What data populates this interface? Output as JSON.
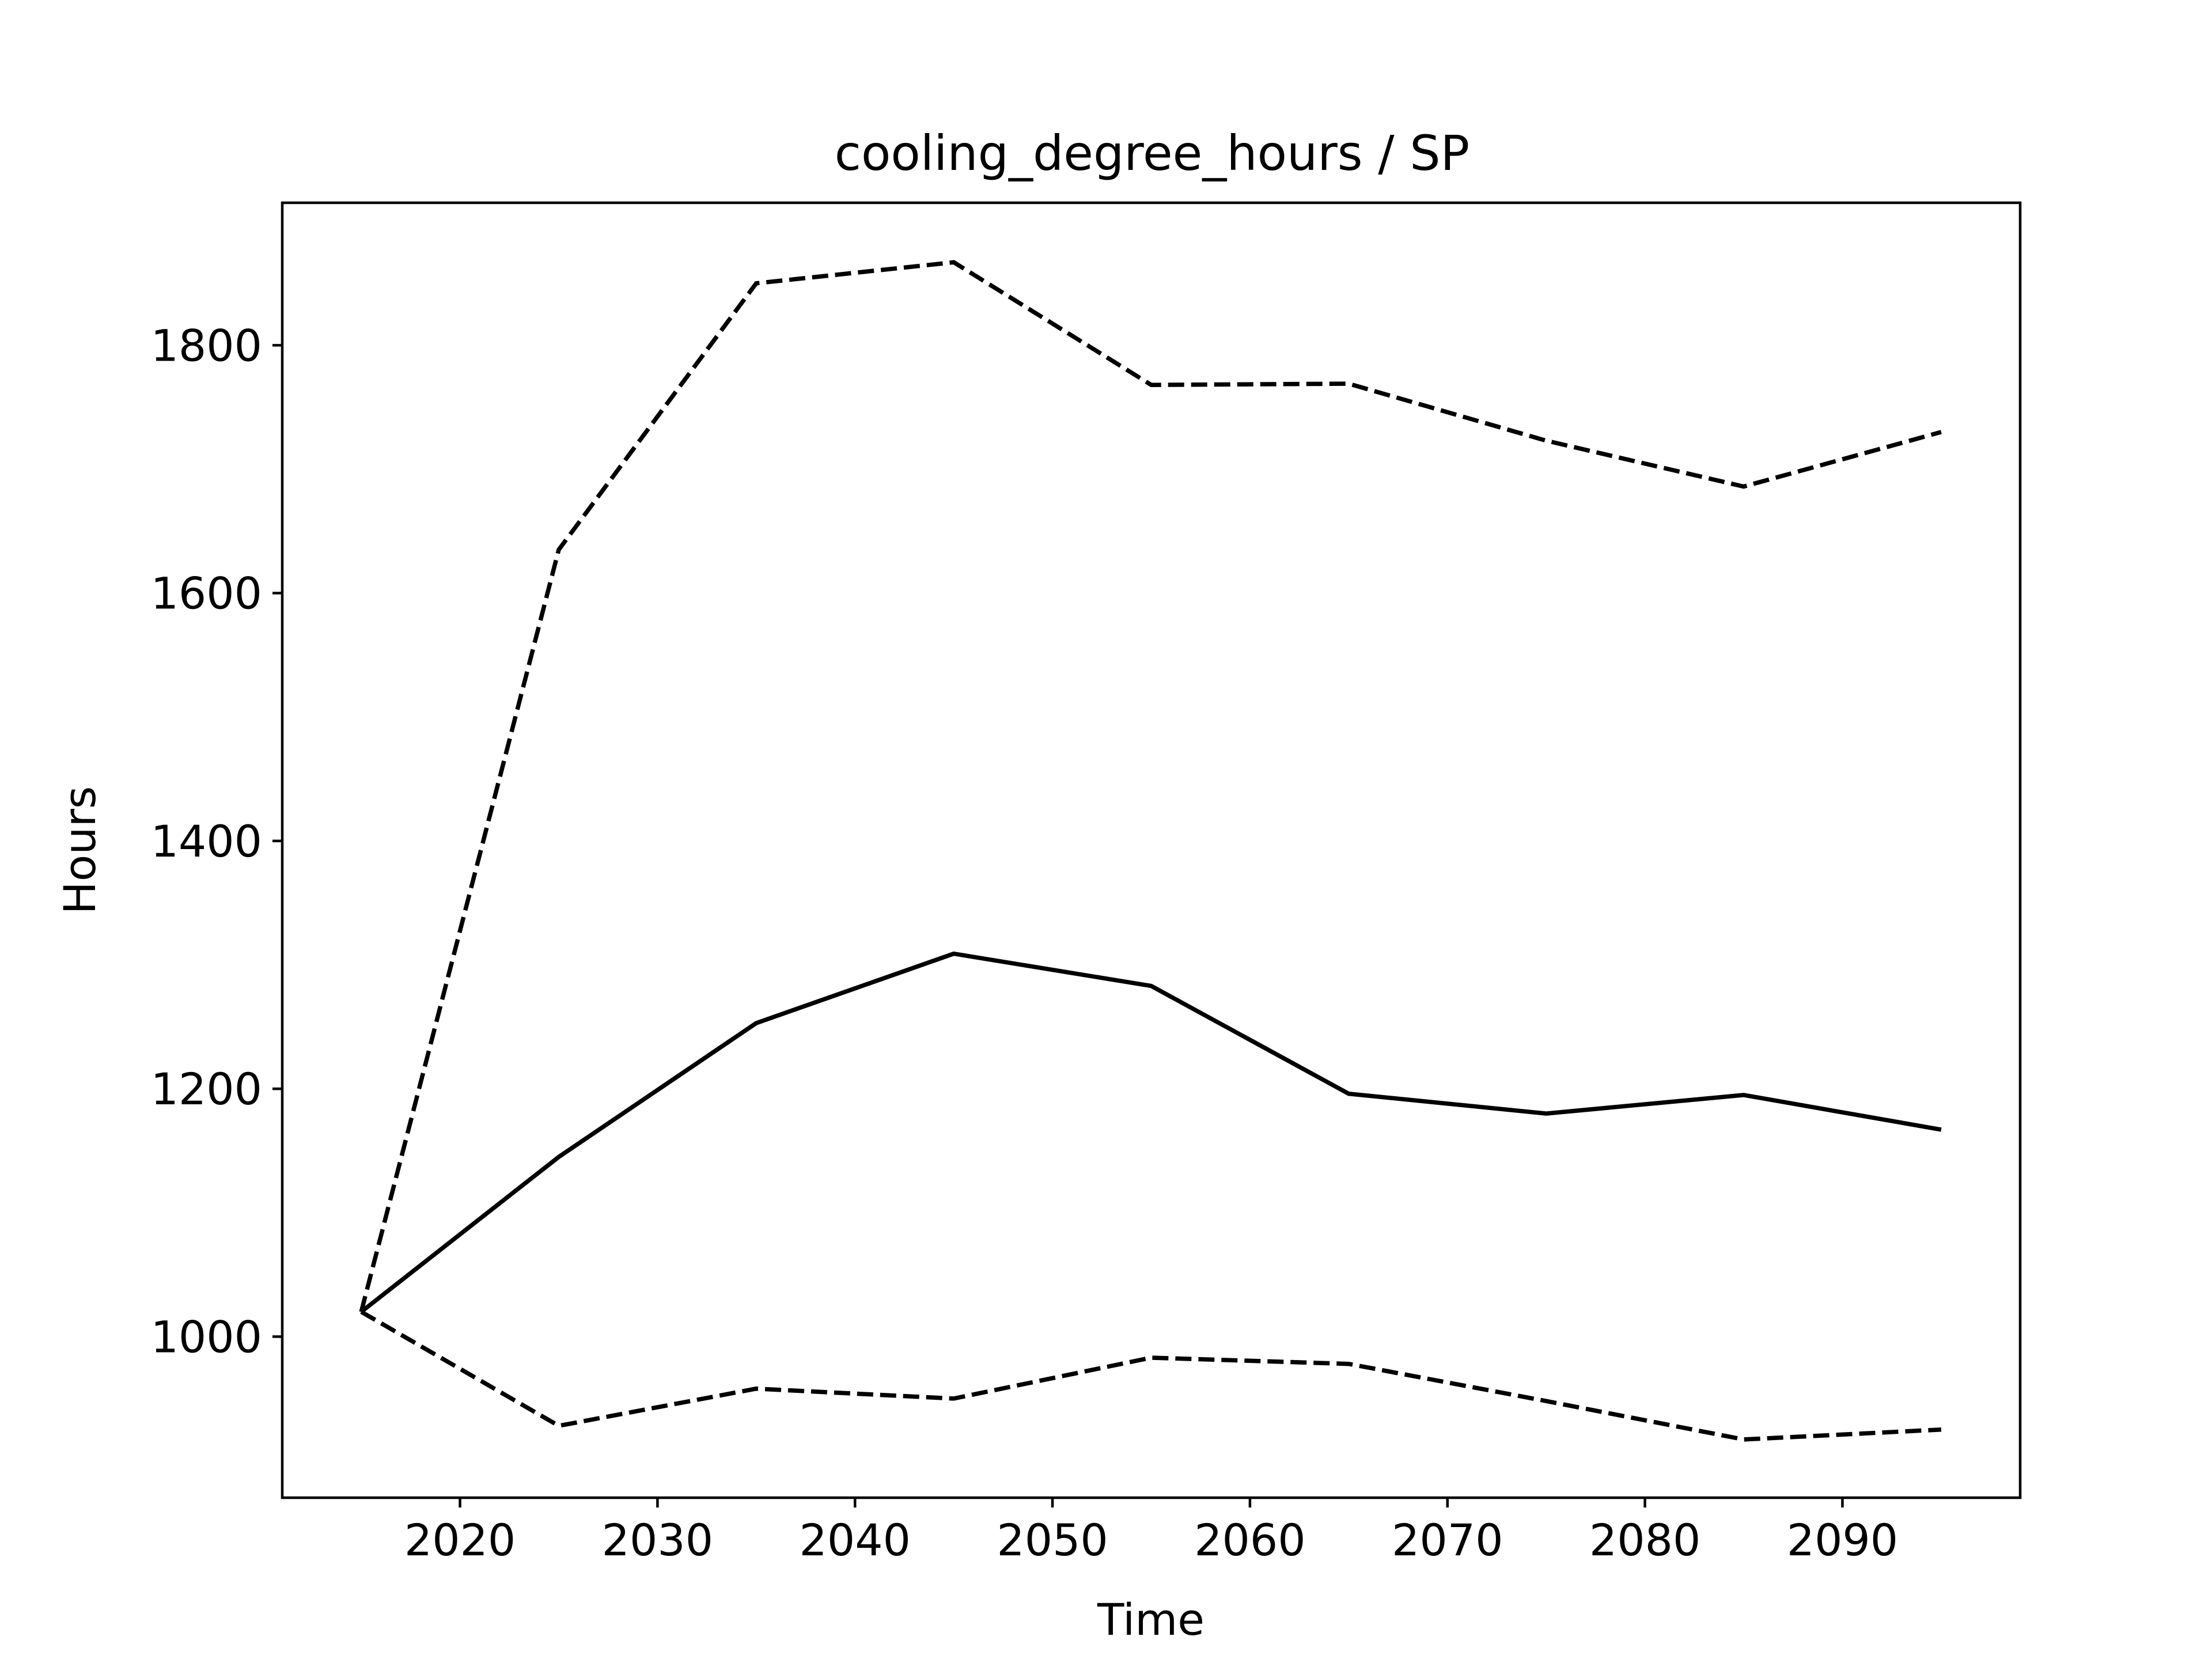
{
  "chart_data": {
    "type": "line",
    "title": "cooling_degree_hours / SP",
    "xlabel": "Time",
    "ylabel": "Hours",
    "x": [
      2015,
      2025,
      2035,
      2045,
      2055,
      2065,
      2075,
      2085,
      2095
    ],
    "xlim": [
      2011,
      2099
    ],
    "ylim": [
      870,
      1915
    ],
    "xticks": [
      2020,
      2030,
      2040,
      2050,
      2060,
      2070,
      2080,
      2090
    ],
    "yticks": [
      1000,
      1200,
      1400,
      1600,
      1800
    ],
    "grid": false,
    "legend": "none",
    "series": [
      {
        "style": "dashed",
        "color": "#000000",
        "values": [
          1020,
          1635,
          1850,
          1867,
          1768,
          1769,
          1723,
          1686,
          1730
        ]
      },
      {
        "style": "solid",
        "color": "#000000",
        "values": [
          1020,
          1145,
          1253,
          1309,
          1283,
          1196,
          1180,
          1195,
          1167
        ]
      },
      {
        "style": "dashed",
        "color": "#000000",
        "values": [
          1020,
          928,
          958,
          950,
          983,
          978,
          948,
          917,
          925
        ]
      }
    ]
  }
}
